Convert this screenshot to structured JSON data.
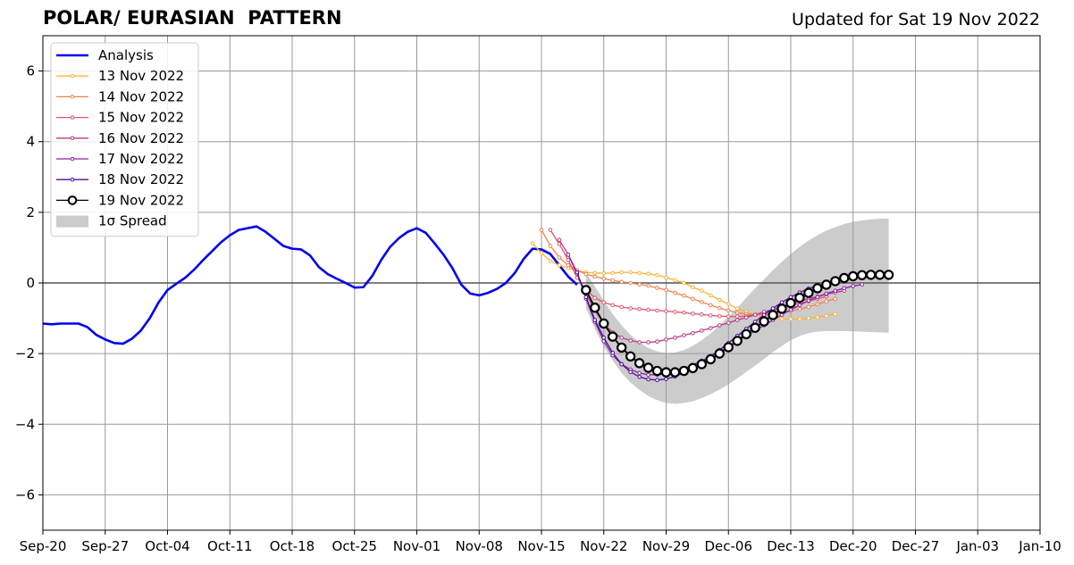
{
  "page": {
    "title": "POLAR/ EURASIAN  PATTERN",
    "updated": "Updated for Sat 19 Nov 2022"
  },
  "chart_data": {
    "type": "line",
    "title": "POLAR/ EURASIAN  PATTERN",
    "subtitle": "Updated for Sat 19 Nov 2022",
    "xlabel": "",
    "ylabel": "",
    "x_start": "2022-09-20",
    "x_end": "2023-01-10",
    "ylim": [
      -7,
      7
    ],
    "grid": true,
    "legend_position": "upper-left",
    "x_ticks": [
      "Sep-20",
      "Sep-27",
      "Oct-04",
      "Oct-11",
      "Oct-18",
      "Oct-25",
      "Nov-01",
      "Nov-08",
      "Nov-15",
      "Nov-22",
      "Nov-29",
      "Dec-06",
      "Dec-13",
      "Dec-20",
      "Dec-27",
      "Jan-03",
      "Jan-10"
    ],
    "y_ticks": [
      "6",
      "4",
      "2",
      "0",
      "−2",
      "−4",
      "−6"
    ],
    "y_tick_values": [
      6,
      4,
      2,
      0,
      -2,
      -4,
      -6
    ],
    "analysis": {
      "name": "Analysis",
      "color": "#0000ee",
      "start_date": "2022-09-20",
      "values": [
        -1.15,
        -1.17,
        -1.15,
        -1.15,
        -1.15,
        -1.25,
        -1.47,
        -1.6,
        -1.7,
        -1.72,
        -1.58,
        -1.35,
        -1.0,
        -0.55,
        -0.2,
        -0.02,
        0.15,
        0.38,
        0.65,
        0.9,
        1.15,
        1.35,
        1.5,
        1.55,
        1.6,
        1.45,
        1.25,
        1.05,
        0.97,
        0.95,
        0.78,
        0.45,
        0.25,
        0.12,
        0.0,
        -0.13,
        -0.12,
        0.2,
        0.65,
        1.02,
        1.27,
        1.45,
        1.55,
        1.42,
        1.12,
        0.8,
        0.42,
        -0.05,
        -0.3,
        -0.35,
        -0.28,
        -0.17,
        0.0,
        0.28,
        0.68,
        0.97,
        0.95,
        0.82,
        0.5,
        0.18,
        -0.05
      ]
    },
    "forecasts": [
      {
        "name": "13 Nov 2022",
        "color": "#f6b53a",
        "start_date": "2022-11-14",
        "values": [
          1.12,
          0.85,
          0.62,
          0.5,
          0.42,
          0.35,
          0.3,
          0.28,
          0.28,
          0.28,
          0.3,
          0.3,
          0.28,
          0.26,
          0.22,
          0.15,
          0.08,
          0.0,
          -0.12,
          -0.22,
          -0.35,
          -0.48,
          -0.6,
          -0.72,
          -0.82,
          -0.9,
          -0.96,
          -1.0,
          -1.02,
          -1.02,
          -1.02,
          -1.0,
          -0.97,
          -0.93,
          -0.88
        ]
      },
      {
        "name": "14 Nov 2022",
        "color": "#f0814e",
        "start_date": "2022-11-15",
        "values": [
          1.5,
          1.05,
          0.72,
          0.5,
          0.36,
          0.25,
          0.18,
          0.12,
          0.07,
          0.03,
          0.0,
          -0.04,
          -0.08,
          -0.14,
          -0.2,
          -0.28,
          -0.36,
          -0.45,
          -0.54,
          -0.63,
          -0.71,
          -0.78,
          -0.84,
          -0.88,
          -0.9,
          -0.9,
          -0.88,
          -0.84,
          -0.8,
          -0.74,
          -0.68,
          -0.6,
          -0.52,
          -0.45
        ]
      },
      {
        "name": "15 Nov 2022",
        "color": "#e0566e",
        "start_date": "2022-11-16",
        "values": [
          1.5,
          1.1,
          0.65,
          0.15,
          -0.2,
          -0.42,
          -0.55,
          -0.63,
          -0.68,
          -0.72,
          -0.74,
          -0.76,
          -0.78,
          -0.8,
          -0.82,
          -0.84,
          -0.87,
          -0.89,
          -0.92,
          -0.94,
          -0.95,
          -0.95,
          -0.94,
          -0.9,
          -0.84,
          -0.77,
          -0.7,
          -0.64,
          -0.58,
          -0.52,
          -0.45,
          -0.38
        ]
      },
      {
        "name": "16 Nov 2022",
        "color": "#b83b88",
        "start_date": "2022-11-17",
        "values": [
          1.22,
          0.8,
          0.25,
          -0.3,
          -0.78,
          -1.15,
          -1.4,
          -1.55,
          -1.63,
          -1.68,
          -1.68,
          -1.66,
          -1.6,
          -1.55,
          -1.48,
          -1.42,
          -1.35,
          -1.28,
          -1.2,
          -1.13,
          -1.05,
          -0.98,
          -0.9,
          -0.82,
          -0.75,
          -0.68,
          -0.6,
          -0.52,
          -0.45,
          -0.38,
          -0.32,
          -0.27,
          -0.22
        ]
      },
      {
        "name": "17 Nov 2022",
        "color": "#8c22a5",
        "start_date": "2022-11-18",
        "values": [
          0.8,
          0.3,
          -0.45,
          -1.1,
          -1.65,
          -2.05,
          -2.3,
          -2.45,
          -2.55,
          -2.6,
          -2.6,
          -2.57,
          -2.5,
          -2.42,
          -2.32,
          -2.2,
          -2.08,
          -1.95,
          -1.8,
          -1.65,
          -1.5,
          -1.35,
          -1.2,
          -1.05,
          -0.9,
          -0.76,
          -0.63,
          -0.5,
          -0.4,
          -0.3,
          -0.22,
          -0.15,
          -0.09,
          -0.04
        ]
      },
      {
        "name": "18 Nov 2022",
        "color": "#4b0ca0",
        "start_date": "2022-11-19",
        "values": [
          0.3,
          -0.4,
          -1.05,
          -1.55,
          -1.98,
          -2.3,
          -2.52,
          -2.66,
          -2.73,
          -2.75,
          -2.72,
          -2.65,
          -2.54,
          -2.4,
          -2.25,
          -2.08,
          -1.9,
          -1.7,
          -1.5,
          -1.3,
          -1.1,
          -0.9,
          -0.72,
          -0.55,
          -0.4,
          -0.27,
          -0.16,
          -0.08,
          -0.03,
          0.0
        ]
      },
      {
        "name": "19 Nov 2022",
        "color": "#000000",
        "start_date": "2022-11-20",
        "values": [
          -0.2,
          -0.7,
          -1.15,
          -1.52,
          -1.83,
          -2.08,
          -2.27,
          -2.4,
          -2.49,
          -2.53,
          -2.53,
          -2.49,
          -2.41,
          -2.3,
          -2.16,
          -2.0,
          -1.82,
          -1.64,
          -1.45,
          -1.27,
          -1.09,
          -0.91,
          -0.73,
          -0.57,
          -0.42,
          -0.28,
          -0.15,
          -0.05,
          0.05,
          0.14,
          0.19,
          0.22,
          0.23,
          0.23,
          0.23
        ]
      }
    ],
    "spread": {
      "name": "1σ Spread",
      "color": "#cccccc",
      "start_date": "2022-11-20",
      "upper": [
        0.3,
        -0.1,
        -0.5,
        -0.88,
        -1.2,
        -1.47,
        -1.68,
        -1.84,
        -1.94,
        -1.98,
        -1.97,
        -1.9,
        -1.78,
        -1.62,
        -1.43,
        -1.2,
        -0.95,
        -0.7,
        -0.42,
        -0.15,
        0.1,
        0.36,
        0.6,
        0.82,
        1.02,
        1.2,
        1.35,
        1.48,
        1.58,
        1.67,
        1.73,
        1.77,
        1.8,
        1.82,
        1.82
      ],
      "lower": [
        -0.7,
        -1.3,
        -1.8,
        -2.2,
        -2.55,
        -2.82,
        -3.03,
        -3.2,
        -3.32,
        -3.4,
        -3.42,
        -3.4,
        -3.35,
        -3.26,
        -3.15,
        -3.02,
        -2.87,
        -2.7,
        -2.52,
        -2.34,
        -2.15,
        -1.96,
        -1.78,
        -1.62,
        -1.5,
        -1.42,
        -1.38,
        -1.36,
        -1.36,
        -1.36,
        -1.37,
        -1.38,
        -1.39,
        -1.4,
        -1.41
      ]
    }
  }
}
